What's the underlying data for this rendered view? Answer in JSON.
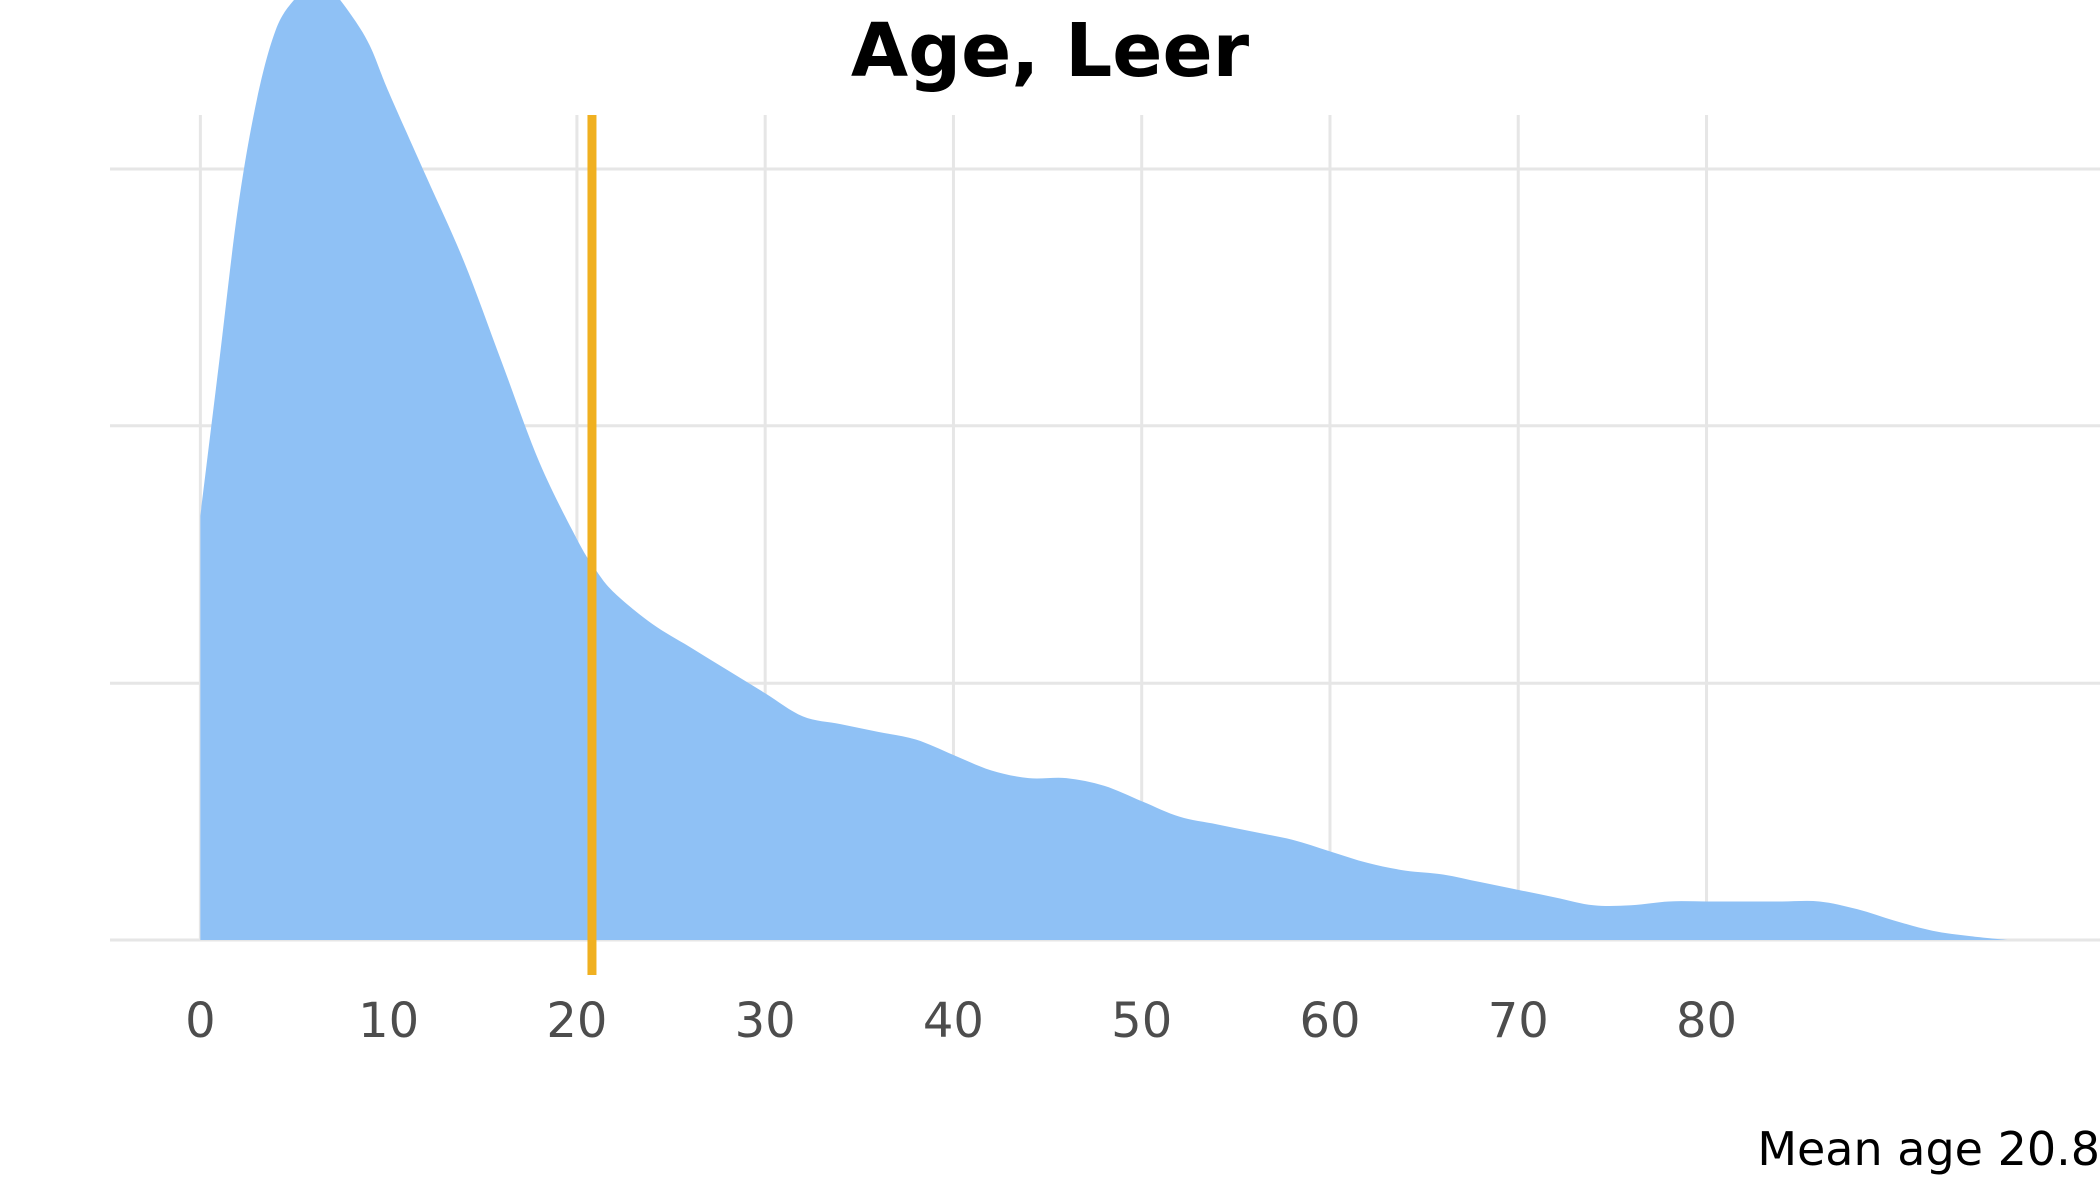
{
  "chart_data": {
    "type": "area",
    "title": "Age, Leer",
    "caption": "Mean age 20.8",
    "xlabel": "",
    "ylabel": "",
    "xlim": [
      -4.8,
      100.9
    ],
    "ylim": [
      0,
      1.07
    ],
    "x_ticks": [
      0,
      10,
      20,
      30,
      40,
      50,
      60,
      70,
      80
    ],
    "x_tick_labels": [
      "0",
      "10",
      "20",
      "30",
      "40",
      "50",
      "60",
      "70",
      "80"
    ],
    "y_gridlines": [
      0,
      0.333,
      0.667,
      1.0
    ],
    "grid": true,
    "fill_color": "#8fc1f5",
    "mean_line": {
      "x": 20.8,
      "color": "#f0b020"
    },
    "density": {
      "x": [
        0,
        1,
        2,
        3,
        4,
        5,
        6,
        7,
        8,
        9,
        10,
        12,
        14,
        16,
        18,
        20,
        21,
        22,
        24,
        26,
        28,
        30,
        32,
        34,
        36,
        38,
        40,
        42,
        44,
        46,
        48,
        50,
        52,
        54,
        56,
        58,
        60,
        62,
        64,
        66,
        68,
        70,
        72,
        74,
        76,
        78,
        80,
        82,
        84,
        86,
        88,
        90,
        92,
        94,
        96
      ],
      "y": [
        0.55,
        0.75,
        0.95,
        1.09,
        1.18,
        1.22,
        1.24,
        1.23,
        1.2,
        1.16,
        1.1,
        0.99,
        0.88,
        0.75,
        0.62,
        0.52,
        0.48,
        0.45,
        0.41,
        0.38,
        0.35,
        0.32,
        0.29,
        0.28,
        0.27,
        0.26,
        0.24,
        0.22,
        0.21,
        0.21,
        0.2,
        0.18,
        0.16,
        0.15,
        0.14,
        0.13,
        0.115,
        0.1,
        0.09,
        0.085,
        0.075,
        0.065,
        0.055,
        0.045,
        0.045,
        0.05,
        0.05,
        0.05,
        0.05,
        0.05,
        0.04,
        0.025,
        0.012,
        0.005,
        0.0
      ]
    }
  }
}
